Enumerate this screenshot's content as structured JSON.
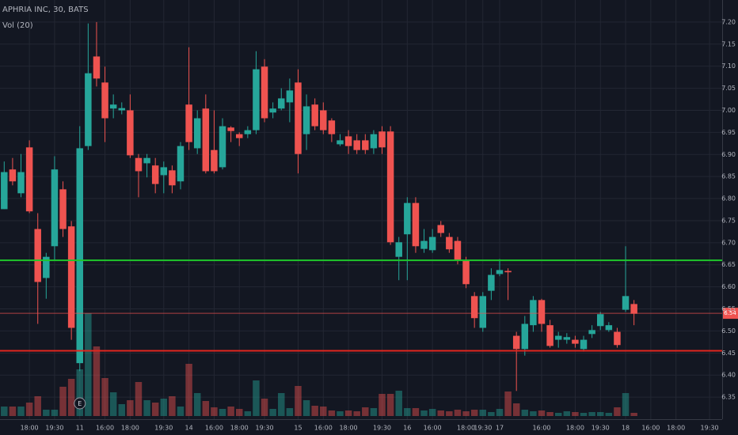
{
  "chart_data": {
    "type": "candlestick",
    "title": "APHRIA INC, 30, BATS",
    "subtitle": "Vol (20)",
    "up_color": "#26a69a",
    "down_color": "#ef5350",
    "categories": [
      null,
      null,
      null,
      "18:00",
      null,
      null,
      "19:30",
      null,
      null,
      "11",
      null,
      null,
      "16:00",
      null,
      null,
      "18:00",
      null,
      null,
      null,
      "19:30",
      null,
      null,
      "14",
      null,
      null,
      "16:00",
      null,
      null,
      "18:00",
      null,
      null,
      "19:30",
      null,
      null,
      null,
      "15",
      null,
      null,
      "16:00",
      null,
      null,
      "18:00",
      null,
      null,
      null,
      "19:30",
      null,
      null,
      "16",
      null,
      null,
      "16:00",
      null,
      null,
      null,
      "18:00",
      null,
      "19:30",
      null,
      "17",
      null,
      null,
      null,
      null,
      "16:00",
      null,
      null,
      null,
      "18:00",
      null,
      null,
      "19:30",
      null,
      null,
      "18",
      null,
      null,
      "16:00",
      null,
      null,
      "18:00",
      null,
      null,
      null,
      "19:30",
      null
    ],
    "open": [
      6.776,
      6.866,
      6.812,
      6.916,
      6.731,
      6.62,
      6.692,
      6.821,
      6.737,
      6.427,
      6.919,
      7.122,
      7.063,
      7.004,
      7.0,
      7.0,
      6.892,
      6.88,
      6.875,
      6.853,
      6.864,
      6.839,
      7.013,
      6.914,
      7.004,
      6.91,
      6.871,
      6.961,
      6.946,
      6.946,
      6.955,
      7.099,
      6.995,
      7.004,
      7.018,
      7.063,
      6.946,
      7.013,
      7.0,
      6.977,
      6.923,
      6.941,
      6.932,
      6.932,
      6.914,
      6.952,
      6.952,
      6.668,
      6.719,
      6.79,
      6.686,
      6.683,
      6.74,
      6.713,
      6.704,
      6.66,
      6.579,
      6.507,
      6.591,
      6.629,
      6.636,
      6.489,
      6.459,
      6.513,
      6.57,
      6.513,
      6.48,
      6.48,
      6.48,
      6.459,
      6.493,
      6.511,
      6.502,
      6.498,
      6.548,
      6.561,
      null,
      null,
      null,
      null,
      null,
      null,
      null,
      null,
      null,
      null
    ],
    "high": [
      6.884,
      6.892,
      6.901,
      6.932,
      6.767,
      6.677,
      6.896,
      6.839,
      6.749,
      6.964,
      7.197,
      7.2,
      7.099,
      7.036,
      7.018,
      7.036,
      6.901,
      6.901,
      6.892,
      6.884,
      6.875,
      6.928,
      7.143,
      7.0,
      7.036,
      7.0,
      6.982,
      6.964,
      6.95,
      6.964,
      7.134,
      7.116,
      7.018,
      7.05,
      7.072,
      7.093,
      7.036,
      7.027,
      7.018,
      6.982,
      6.946,
      6.955,
      6.946,
      6.946,
      6.955,
      6.964,
      6.964,
      6.713,
      6.803,
      6.803,
      6.731,
      6.731,
      6.749,
      6.722,
      6.713,
      6.668,
      6.588,
      6.588,
      6.642,
      6.663,
      6.642,
      6.498,
      6.534,
      6.579,
      6.573,
      6.525,
      6.498,
      6.495,
      6.489,
      6.489,
      6.513,
      6.543,
      6.52,
      6.507,
      6.692,
      6.57,
      null,
      null,
      null,
      null,
      null,
      null,
      null,
      null,
      null,
      null
    ],
    "low": [
      6.776,
      6.83,
      6.803,
      6.767,
      6.516,
      6.573,
      6.66,
      6.713,
      6.48,
      6.409,
      6.91,
      7.054,
      6.928,
      6.982,
      6.991,
      6.892,
      6.803,
      6.848,
      6.812,
      6.812,
      6.812,
      6.821,
      6.91,
      6.901,
      6.857,
      6.857,
      6.866,
      6.928,
      6.919,
      6.937,
      6.946,
      6.973,
      6.982,
      7.0,
      6.973,
      6.857,
      6.91,
      6.955,
      6.946,
      6.928,
      6.919,
      6.901,
      6.901,
      6.901,
      6.901,
      6.901,
      6.695,
      6.615,
      6.615,
      6.677,
      6.677,
      6.677,
      6.713,
      6.677,
      6.651,
      6.597,
      6.507,
      6.498,
      6.57,
      6.624,
      6.57,
      6.364,
      6.444,
      6.498,
      6.498,
      6.462,
      6.462,
      6.471,
      6.462,
      6.453,
      6.484,
      6.502,
      6.498,
      6.462,
      6.543,
      6.513,
      null,
      null,
      null,
      null,
      null,
      null,
      null,
      null,
      null,
      null
    ],
    "close": [
      6.86,
      6.839,
      6.86,
      6.771,
      6.611,
      6.668,
      6.866,
      6.731,
      6.507,
      6.914,
      7.084,
      7.072,
      6.982,
      7.013,
      7.005,
      6.898,
      6.862,
      6.892,
      6.833,
      6.871,
      6.83,
      6.919,
      6.928,
      6.982,
      6.862,
      6.862,
      6.964,
      6.953,
      6.937,
      6.955,
      7.093,
      6.982,
      7.004,
      7.027,
      7.045,
      6.901,
      7.009,
      6.964,
      6.955,
      6.946,
      6.932,
      6.919,
      6.91,
      6.91,
      6.946,
      6.916,
      6.701,
      6.701,
      6.79,
      6.692,
      6.704,
      6.713,
      6.722,
      6.685,
      6.66,
      6.606,
      6.529,
      6.579,
      6.627,
      6.638,
      6.633,
      6.459,
      6.516,
      6.57,
      6.516,
      6.466,
      6.489,
      6.486,
      6.471,
      6.48,
      6.502,
      6.538,
      6.513,
      6.468,
      6.579,
      6.539,
      null,
      null,
      null,
      null,
      null,
      null,
      null,
      null,
      null,
      null
    ],
    "volume": [
      12,
      12,
      12,
      17,
      25,
      8,
      8,
      37,
      47,
      59,
      130,
      88,
      48,
      30,
      15,
      20,
      43,
      20,
      17,
      22,
      25,
      12,
      66,
      29,
      19,
      11,
      9,
      12,
      9,
      6,
      45,
      22,
      9,
      29,
      10,
      38,
      20,
      13,
      12,
      7,
      6,
      7,
      6,
      11,
      10,
      28,
      28,
      32,
      10,
      10,
      7,
      9,
      7,
      6,
      8,
      6,
      8,
      8,
      5,
      9,
      31,
      16,
      8,
      6,
      7,
      5,
      4,
      6,
      5,
      4,
      5,
      5,
      4,
      11,
      29,
      4,
      null,
      null,
      null,
      null,
      null,
      null,
      null,
      null,
      null,
      null
    ],
    "ylim": [
      6.3,
      7.25
    ],
    "yticks": [
      6.35,
      {
        "value": 6.4,
        "label": "6.40"
      },
      6.45,
      {
        "value": 6.5,
        "label": "6.50"
      },
      6.55,
      {
        "value": 6.6,
        "label": "6.60"
      },
      6.65,
      {
        "value": 6.7,
        "label": "6.70"
      },
      6.75,
      {
        "value": 6.8,
        "label": "6.80"
      },
      6.85,
      {
        "value": 6.9,
        "label": "6.90"
      },
      6.95,
      {
        "value": 7.0,
        "label": "7.00"
      },
      7.05,
      {
        "value": 7.1,
        "label": "7.10"
      },
      7.15,
      {
        "value": 7.2,
        "label": "7.20"
      }
    ],
    "grid": true,
    "hlines": [
      {
        "value": 6.66,
        "color": "#1fc62b"
      },
      {
        "value": 6.455,
        "color": "#e1261f"
      }
    ],
    "last_price": 6.54,
    "last_price_color": "#ef5350",
    "annotations": [
      {
        "text": "E",
        "at": "11"
      }
    ]
  }
}
